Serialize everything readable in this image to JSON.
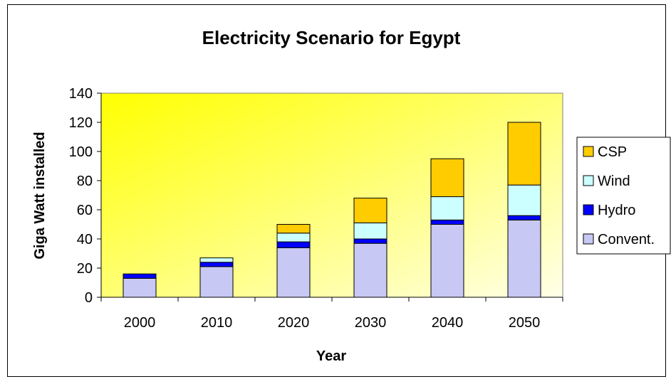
{
  "chart_data": {
    "type": "bar",
    "stacked": true,
    "title": "Electricity Scenario for Egypt",
    "xlabel": "Year",
    "ylabel": "Giga Watt installed",
    "categories": [
      "2000",
      "2010",
      "2020",
      "2030",
      "2040",
      "2050"
    ],
    "ylim": [
      0,
      140
    ],
    "yticks": [
      0,
      20,
      40,
      60,
      80,
      100,
      120,
      140
    ],
    "ytick_labels": [
      "0",
      "20",
      "40",
      "60",
      "80",
      "100",
      "120",
      "140"
    ],
    "grid": false,
    "legend_position": "right",
    "series": [
      {
        "name": "Convent.",
        "color": "#c8c8f5",
        "values": [
          13,
          21,
          34,
          37,
          50,
          53
        ]
      },
      {
        "name": "Hydro",
        "color": "#0000ff",
        "values": [
          3,
          3,
          4,
          3,
          3,
          3
        ]
      },
      {
        "name": "Wind",
        "color": "#ccffff",
        "values": [
          0,
          3,
          6,
          11,
          16,
          21
        ]
      },
      {
        "name": "CSP",
        "color": "#ffcc00",
        "values": [
          0,
          0,
          6,
          17,
          26,
          43
        ]
      }
    ],
    "legend_order": [
      "CSP",
      "Wind",
      "Hydro",
      "Convent."
    ],
    "plot_background": [
      "#ffff00",
      "#ffffe8"
    ]
  }
}
